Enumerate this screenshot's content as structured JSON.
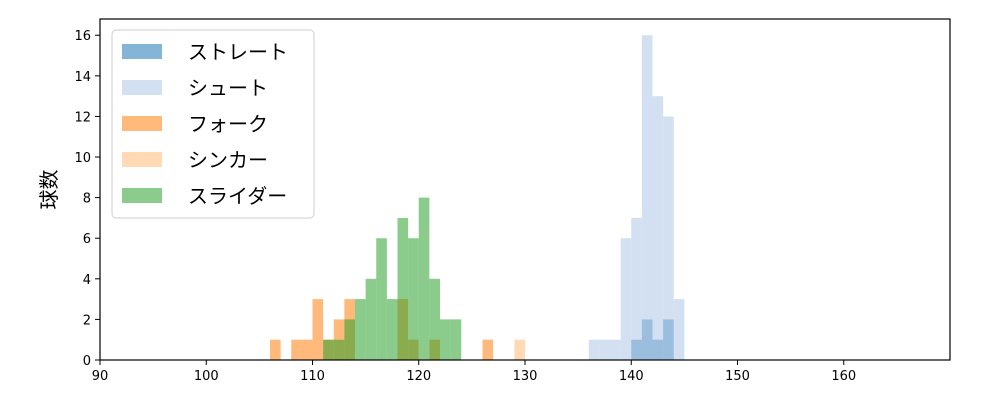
{
  "chart_data": {
    "type": "bar",
    "subtype": "histogram",
    "title": "",
    "xlabel": "",
    "ylabel": "球数",
    "xlim": [
      90,
      170
    ],
    "ylim": [
      0,
      16.8
    ],
    "xticks": [
      90,
      100,
      110,
      120,
      130,
      140,
      150,
      160
    ],
    "yticks": [
      0,
      2,
      4,
      6,
      8,
      10,
      12,
      14,
      16
    ],
    "bin_width": 1,
    "grid": false,
    "legend_position": "top-left",
    "series": [
      {
        "name": "ストレート",
        "color": "#1f77b4",
        "bins": [
          [
            140,
            1
          ],
          [
            141,
            2
          ],
          [
            142,
            1
          ],
          [
            143,
            2
          ]
        ]
      },
      {
        "name": "シュート",
        "color": "#aec7e8",
        "bins": [
          [
            136,
            1
          ],
          [
            137,
            1
          ],
          [
            138,
            1
          ],
          [
            139,
            6
          ],
          [
            140,
            7
          ],
          [
            141,
            16
          ],
          [
            142,
            13
          ],
          [
            143,
            12
          ],
          [
            144,
            3
          ]
        ]
      },
      {
        "name": "フォーク",
        "color": "#ff7f0e",
        "bins": [
          [
            106,
            1
          ],
          [
            108,
            1
          ],
          [
            109,
            1
          ],
          [
            110,
            3
          ],
          [
            111,
            1
          ],
          [
            112,
            2
          ],
          [
            113,
            3
          ],
          [
            118,
            3
          ],
          [
            119,
            1
          ],
          [
            121,
            1
          ],
          [
            126,
            1
          ]
        ]
      },
      {
        "name": "シンカー",
        "color": "#ffbb78",
        "bins": [
          [
            129,
            1
          ]
        ]
      },
      {
        "name": "スライダー",
        "color": "#2ca02c",
        "bins": [
          [
            111,
            1
          ],
          [
            112,
            1
          ],
          [
            113,
            2
          ],
          [
            114,
            3
          ],
          [
            115,
            4
          ],
          [
            116,
            6
          ],
          [
            117,
            3
          ],
          [
            118,
            7
          ],
          [
            119,
            6
          ],
          [
            120,
            8
          ],
          [
            121,
            4
          ],
          [
            122,
            2
          ],
          [
            123,
            2
          ]
        ]
      }
    ]
  }
}
